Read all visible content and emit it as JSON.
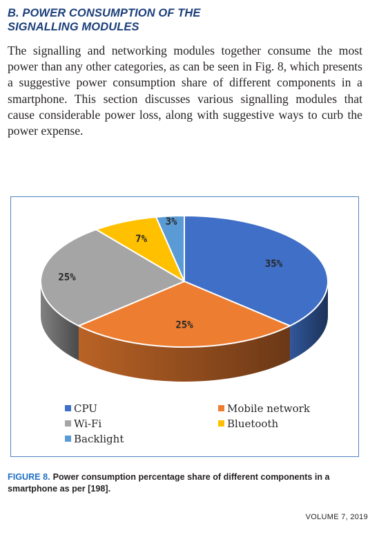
{
  "section": {
    "heading_line1": "B. POWER CONSUMPTION OF THE",
    "heading_line2": "SIGNALLING MODULES",
    "paragraph": "The signalling and networking modules together consume the most power than any other categories, as can be seen in Fig. 8, which presents a suggestive power consumption share of different components in a smartphone. This section discusses various signalling modules that cause considerable power loss, along with suggestive ways to curb the power expense."
  },
  "chart_data": {
    "type": "pie",
    "style": "3d",
    "title": "",
    "legend_position": "bottom",
    "slices": [
      {
        "label": "CPU",
        "value": 35,
        "value_label": "35%",
        "color": "#3f6fc6"
      },
      {
        "label": "Mobile network",
        "value": 25,
        "value_label": "25%",
        "color": "#ed7d31"
      },
      {
        "label": "Wi-Fi",
        "value": 25,
        "value_label": "25%",
        "color": "#a5a5a5"
      },
      {
        "label": "Bluetooth",
        "value": 7,
        "value_label": "7%",
        "color": "#ffc000"
      },
      {
        "label": "Backlight",
        "value": 3,
        "value_label": "3%",
        "color": "#5b9bd5"
      }
    ]
  },
  "figure": {
    "label": "FIGURE 8.",
    "caption": "Power consumption percentage share of different components in a smartphone as per [198]."
  },
  "footer": {
    "volume": "VOLUME 7, 2019"
  }
}
